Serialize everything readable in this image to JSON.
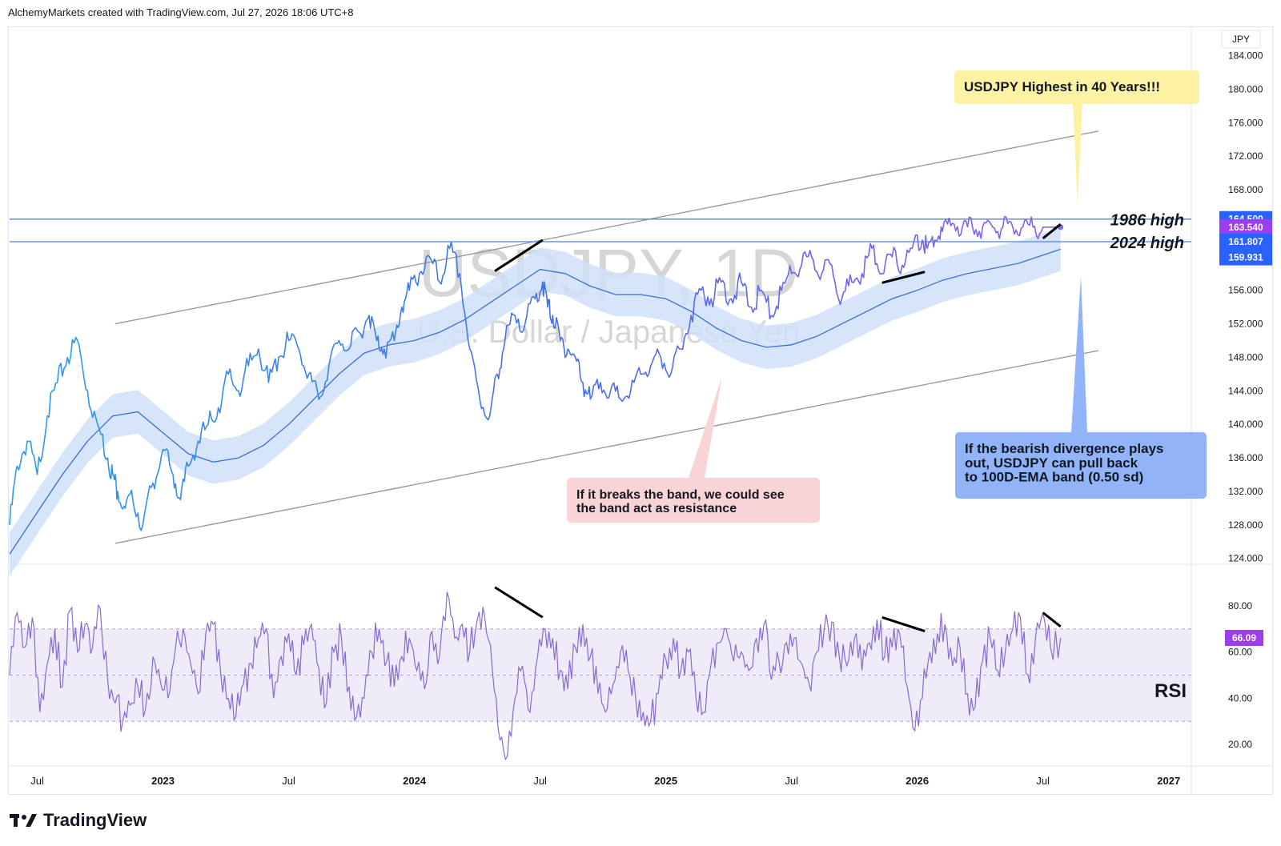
{
  "header": {
    "attribution": "AlchemyMarkets created with TradingView.com, Jul 27, 2026 18:06 UTC+8"
  },
  "footer": {
    "brand": "TradingView",
    "brand_icon": "tradingview-logo-icon"
  },
  "colors": {
    "price_line": "#4a6fe8",
    "price_line_early": "#2e9be6",
    "price_line_late": "#8a63e8",
    "ema_line": "#3b6fd9",
    "ema_band": "#cfe0f9",
    "channel_line": "#9a9a9a",
    "hline": "#5f8ee8",
    "rsi_line": "#8a6ad0",
    "rsi_band_fill": "#efebf9",
    "rsi_band_border": "#a9a3d6",
    "divergence": "#000000",
    "note_yellow": "#fdf2a4",
    "note_pink": "#f9d4d6",
    "note_blue": "#91b3f7",
    "watermark": "#d6d6d6"
  },
  "chart_data": [
    {
      "type": "line",
      "watermark_symbol": "USDJPY, 1D",
      "watermark_name": "U.S. Dollar / Japanese Yen",
      "currency_label": "JPY",
      "x_tick_labels": [
        {
          "x": 2022.5,
          "label": "Jul"
        },
        {
          "x": 2023.0,
          "label": "2023"
        },
        {
          "x": 2023.5,
          "label": "Jul"
        },
        {
          "x": 2024.0,
          "label": "2024"
        },
        {
          "x": 2024.5,
          "label": "Jul"
        },
        {
          "x": 2025.0,
          "label": "2025"
        },
        {
          "x": 2025.5,
          "label": "Jul"
        },
        {
          "x": 2026.0,
          "label": "2026"
        },
        {
          "x": 2026.5,
          "label": "Jul"
        },
        {
          "x": 2027.0,
          "label": "2027"
        }
      ],
      "xlim": [
        2022.39,
        2027.09
      ],
      "ylim": [
        123.3,
        187.5
      ],
      "y_ticks": [
        {
          "v": 124,
          "label": "124.000"
        },
        {
          "v": 128,
          "label": "128.000"
        },
        {
          "v": 132,
          "label": "132.000"
        },
        {
          "v": 136,
          "label": "136.000"
        },
        {
          "v": 140,
          "label": "140.000"
        },
        {
          "v": 144,
          "label": "144.000"
        },
        {
          "v": 148,
          "label": "148.000"
        },
        {
          "v": 152,
          "label": "152.000"
        },
        {
          "v": 156,
          "label": "156.000"
        },
        {
          "v": 168,
          "label": "168.000"
        },
        {
          "v": 172,
          "label": "172.000"
        },
        {
          "v": 176,
          "label": "176.000"
        },
        {
          "v": 180,
          "label": "180.000"
        },
        {
          "v": 184,
          "label": "184.000"
        }
      ],
      "price_tags": [
        {
          "v": 164.5,
          "label": "164.500",
          "color": "#2962ff"
        },
        {
          "v": 163.54,
          "label": "163.540",
          "color": "#9c3ef0"
        },
        {
          "v": 161.807,
          "label": "161.807",
          "color": "#2962ff"
        },
        {
          "v": 159.931,
          "label": "159.931",
          "color": "#2962ff"
        }
      ],
      "horizontal_lines": [
        {
          "v": 164.5,
          "label": "1986 high"
        },
        {
          "v": 161.807,
          "label": "2024 high"
        }
      ],
      "channel_lines": [
        {
          "x1": 2022.81,
          "y1": 152.0,
          "x2": 2026.72,
          "y2": 175.0
        },
        {
          "x1": 2022.81,
          "y1": 125.8,
          "x2": 2026.72,
          "y2": 148.8
        }
      ],
      "divergence_lines": [
        {
          "x1": 2024.32,
          "y1": 158.3,
          "x2": 2024.51,
          "y2": 162.0
        },
        {
          "x1": 2025.86,
          "y1": 156.9,
          "x2": 2026.03,
          "y2": 158.2
        },
        {
          "x1": 2026.5,
          "y1": 162.2,
          "x2": 2026.57,
          "y2": 163.9
        }
      ],
      "series": [
        {
          "name": "Price",
          "x": [
            2022.39,
            2022.42,
            2022.46,
            2022.5,
            2022.54,
            2022.58,
            2022.62,
            2022.66,
            2022.7,
            2022.74,
            2022.78,
            2022.8,
            2022.82,
            2022.85,
            2022.88,
            2022.92,
            2022.96,
            2023.0,
            2023.04,
            2023.07,
            2023.1,
            2023.14,
            2023.18,
            2023.22,
            2023.26,
            2023.3,
            2023.34,
            2023.38,
            2023.42,
            2023.46,
            2023.5,
            2023.54,
            2023.58,
            2023.62,
            2023.66,
            2023.7,
            2023.74,
            2023.78,
            2023.82,
            2023.85,
            2023.88,
            2023.92,
            2023.95,
            2023.98,
            2024.02,
            2024.06,
            2024.1,
            2024.14,
            2024.18,
            2024.22,
            2024.26,
            2024.3,
            2024.33,
            2024.36,
            2024.4,
            2024.44,
            2024.48,
            2024.51,
            2024.53,
            2024.55,
            2024.58,
            2024.61,
            2024.64,
            2024.67,
            2024.7,
            2024.74,
            2024.78,
            2024.82,
            2024.86,
            2024.9,
            2024.94,
            2024.98,
            2025.02,
            2025.06,
            2025.1,
            2025.14,
            2025.18,
            2025.22,
            2025.26,
            2025.3,
            2025.34,
            2025.38,
            2025.42,
            2025.46,
            2025.5,
            2025.54,
            2025.58,
            2025.62,
            2025.66,
            2025.7,
            2025.74,
            2025.78,
            2025.82,
            2025.86,
            2025.9,
            2025.94,
            2025.98,
            2026.02,
            2026.04,
            2026.07,
            2026.1,
            2026.14,
            2026.18,
            2026.22,
            2026.26,
            2026.3,
            2026.34,
            2026.38,
            2026.42,
            2026.46,
            2026.5,
            2026.52,
            2026.55,
            2026.57
          ],
          "values": [
            128,
            135,
            138,
            134,
            141,
            145,
            148,
            150,
            144,
            140,
            136,
            134,
            132,
            130,
            131,
            128,
            133,
            137,
            134,
            131,
            135,
            138,
            140,
            142,
            146,
            144,
            147,
            149,
            145,
            148,
            150,
            149,
            146,
            143,
            147,
            150,
            149,
            151,
            153,
            150,
            149,
            150,
            154,
            156,
            158,
            160,
            157,
            161,
            158,
            149,
            143,
            141,
            146,
            150,
            153,
            152,
            155,
            157,
            154,
            153,
            150,
            149,
            148,
            145,
            143,
            145,
            144,
            143,
            144,
            146,
            147,
            148,
            146,
            149,
            153,
            156,
            155,
            157,
            155,
            157,
            154,
            156,
            153,
            156,
            158,
            159,
            160,
            158,
            159,
            155,
            157,
            158,
            161,
            158,
            160,
            159,
            161,
            162,
            161,
            162,
            163,
            164,
            163.6,
            163.5,
            163.54,
            163.54,
            163.54,
            163.54,
            163.54,
            163.54,
            163.54,
            163.54,
            163.54,
            163.54
          ]
        },
        {
          "name": "EMA 100",
          "x": [
            2022.39,
            2022.5,
            2022.6,
            2022.7,
            2022.8,
            2022.9,
            2023.0,
            2023.1,
            2023.2,
            2023.3,
            2023.4,
            2023.5,
            2023.6,
            2023.7,
            2023.8,
            2023.9,
            2024.0,
            2024.1,
            2024.2,
            2024.3,
            2024.4,
            2024.5,
            2024.6,
            2024.7,
            2024.8,
            2024.9,
            2025.0,
            2025.1,
            2025.2,
            2025.3,
            2025.4,
            2025.5,
            2025.6,
            2025.7,
            2025.8,
            2025.9,
            2026.0,
            2026.1,
            2026.2,
            2026.3,
            2026.4,
            2026.5,
            2026.57
          ],
          "values": [
            124.5,
            129.5,
            134,
            138,
            141,
            141.5,
            139,
            136.5,
            135.5,
            136,
            137.5,
            140,
            143,
            146,
            148.5,
            149.5,
            150,
            151,
            152.5,
            154.5,
            156.5,
            158.5,
            158,
            156.5,
            155.5,
            155.5,
            155,
            153.5,
            151.5,
            150,
            149.2,
            149.5,
            150.5,
            152,
            153.5,
            155,
            156,
            157.2,
            158,
            158.6,
            159.2,
            160.2,
            160.9
          ]
        }
      ],
      "annotations": [
        {
          "text": "USDJPY Highest in 40 Years!!!",
          "color": "yellow"
        },
        {
          "text": "If it breaks the band, we could see\nthe band act as resistance",
          "color": "pink"
        },
        {
          "text": "If the bearish divergence plays\nout, USDJPY can pull back\nto 100D-EMA band (0.50 sd)",
          "color": "blue"
        }
      ]
    },
    {
      "type": "line",
      "title": "RSI",
      "xlim": [
        2022.39,
        2027.09
      ],
      "ylim": [
        10.7,
        97.6
      ],
      "y_ticks": [
        {
          "v": 20,
          "label": "20.00"
        },
        {
          "v": 40,
          "label": "40.00"
        },
        {
          "v": 60,
          "label": "60.00"
        },
        {
          "v": 80,
          "label": "80.00"
        }
      ],
      "band": [
        30,
        70
      ],
      "midline": 50,
      "price_tag": {
        "v": 66.09,
        "label": "66.09",
        "color": "#9c3ef0"
      },
      "divergence_lines": [
        {
          "x1": 2024.32,
          "y1": 88,
          "x2": 2024.51,
          "y2": 75
        },
        {
          "x1": 2025.86,
          "y1": 75,
          "x2": 2026.03,
          "y2": 69
        },
        {
          "x1": 2026.5,
          "y1": 77,
          "x2": 2026.57,
          "y2": 71
        }
      ],
      "series": [
        {
          "name": "RSI",
          "x": [
            2022.39,
            2022.42,
            2022.45,
            2022.48,
            2022.51,
            2022.54,
            2022.57,
            2022.6,
            2022.63,
            2022.66,
            2022.69,
            2022.72,
            2022.75,
            2022.78,
            2022.81,
            2022.84,
            2022.87,
            2022.9,
            2022.93,
            2022.96,
            2022.99,
            2023.02,
            2023.05,
            2023.08,
            2023.11,
            2023.14,
            2023.17,
            2023.2,
            2023.23,
            2023.26,
            2023.29,
            2023.32,
            2023.35,
            2023.38,
            2023.41,
            2023.44,
            2023.47,
            2023.5,
            2023.53,
            2023.56,
            2023.59,
            2023.62,
            2023.65,
            2023.68,
            2023.71,
            2023.74,
            2023.77,
            2023.8,
            2023.83,
            2023.86,
            2023.89,
            2023.92,
            2023.95,
            2023.98,
            2024.01,
            2024.04,
            2024.07,
            2024.1,
            2024.13,
            2024.16,
            2024.19,
            2024.22,
            2024.25,
            2024.28,
            2024.31,
            2024.34,
            2024.37,
            2024.4,
            2024.43,
            2024.46,
            2024.49,
            2024.52,
            2024.55,
            2024.58,
            2024.61,
            2024.64,
            2024.67,
            2024.7,
            2024.73,
            2024.76,
            2024.79,
            2024.82,
            2024.85,
            2024.88,
            2024.91,
            2024.94,
            2024.97,
            2025.0,
            2025.03,
            2025.06,
            2025.09,
            2025.12,
            2025.15,
            2025.18,
            2025.21,
            2025.24,
            2025.27,
            2025.3,
            2025.33,
            2025.36,
            2025.39,
            2025.42,
            2025.45,
            2025.48,
            2025.51,
            2025.54,
            2025.57,
            2025.6,
            2025.63,
            2025.66,
            2025.69,
            2025.72,
            2025.75,
            2025.78,
            2025.81,
            2025.84,
            2025.87,
            2025.9,
            2025.93,
            2025.96,
            2025.99,
            2026.02,
            2026.05,
            2026.08,
            2026.11,
            2026.14,
            2026.17,
            2026.2,
            2026.23,
            2026.26,
            2026.29,
            2026.32,
            2026.35,
            2026.38,
            2026.41,
            2026.44,
            2026.47,
            2026.5,
            2026.53,
            2026.57
          ],
          "values": [
            50,
            77,
            62,
            75,
            34,
            55,
            70,
            45,
            78,
            60,
            72,
            62,
            79,
            48,
            38,
            30,
            37,
            45,
            35,
            58,
            47,
            40,
            62,
            70,
            55,
            42,
            68,
            72,
            50,
            40,
            32,
            46,
            55,
            66,
            70,
            40,
            58,
            68,
            50,
            63,
            72,
            53,
            38,
            60,
            66,
            45,
            32,
            40,
            60,
            70,
            56,
            45,
            58,
            66,
            52,
            44,
            69,
            58,
            86,
            66,
            72,
            60,
            74,
            75,
            52,
            22,
            15,
            40,
            54,
            34,
            58,
            70,
            66,
            52,
            44,
            62,
            72,
            58,
            42,
            34,
            46,
            60,
            52,
            40,
            34,
            30,
            42,
            57,
            66,
            52,
            60,
            40,
            34,
            55,
            64,
            70,
            56,
            60,
            52,
            66,
            72,
            48,
            56,
            64,
            66,
            55,
            46,
            60,
            70,
            73,
            58,
            54,
            66,
            52,
            64,
            74,
            58,
            62,
            68,
            45,
            26,
            40,
            60,
            68,
            72,
            54,
            62,
            42,
            36,
            56,
            66,
            52,
            60,
            70,
            75,
            50,
            66,
            77,
            62,
            66.09
          ]
        }
      ]
    }
  ]
}
